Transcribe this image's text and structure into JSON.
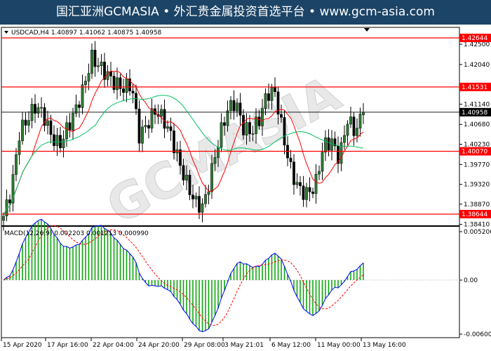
{
  "title": "国汇亚洲GCMASIA • 外汇贵金属投资首选平台 • www.gcm-asia.com",
  "watermark": "GCMASIA",
  "chart_data": {
    "type": "candlestick",
    "symbol_label": "USDCAD,H4  1.40897 1.41062 1.40875 1.40958",
    "ohlc_last": {
      "open": 1.40897,
      "high": 1.41062,
      "low": 1.40875,
      "close": 1.40958
    },
    "ylim": [
      1.383,
      1.429
    ],
    "price_ticks": [
      "1.42500",
      "1.42040",
      "1.41140",
      "1.40680",
      "1.40230",
      "1.39770",
      "1.39320",
      "1.38870",
      "1.38410"
    ],
    "levels": [
      {
        "value": 1.42644,
        "label": "1.42644",
        "color": "#ff0000"
      },
      {
        "value": 1.41531,
        "label": "1.41531",
        "color": "#ff0000"
      },
      {
        "value": 1.4007,
        "label": "1.40070",
        "color": "#ff0000"
      },
      {
        "value": 1.38644,
        "label": "1.38644",
        "color": "#ff0000"
      }
    ],
    "current": {
      "value": 1.40958,
      "label": "1.40958",
      "color": "#000000"
    },
    "closes": [
      1.386,
      1.392,
      1.405,
      1.408,
      1.411,
      1.409,
      1.404,
      1.402,
      1.406,
      1.41,
      1.415,
      1.422,
      1.42,
      1.418,
      1.416,
      1.415,
      1.416,
      1.404,
      1.407,
      1.41,
      1.408,
      1.404,
      1.398,
      1.393,
      1.389,
      1.388,
      1.396,
      1.404,
      1.41,
      1.412,
      1.406,
      1.405,
      1.408,
      1.414,
      1.414,
      1.404,
      1.396,
      1.392,
      1.391,
      1.393,
      1.402,
      1.403,
      1.399,
      1.408,
      1.405,
      1.4096
    ],
    "dates": [
      "15 Apr 2020",
      "17 Apr 16:00",
      "22 Apr 04:00",
      "24 Apr 20:00",
      "29 Apr 08:00",
      "3 May 21:01",
      "6 May 12:00",
      "11 May 00:00",
      "13 May 16:00"
    ],
    "ma_colors": {
      "fast": "#ff0000",
      "slow": "#00c060"
    },
    "macd": {
      "label": "MACD(12,26,9) 0.002203 0.001213 0.000990",
      "ticks": [
        "0.005206",
        "0.00",
        "-0.006001"
      ],
      "ylim": [
        -0.0062,
        0.0056
      ],
      "line_color": "#0000ff",
      "signal_color": "#ff0000",
      "hist_color": "#00a000"
    }
  }
}
